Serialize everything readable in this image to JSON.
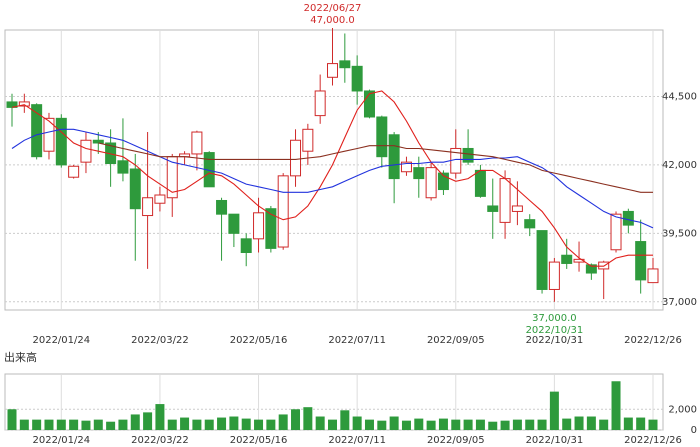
{
  "chart_data": [
    {
      "type": "candlestick",
      "categories": [
        null,
        null,
        null,
        null,
        "2022/01/24",
        null,
        null,
        null,
        null,
        null,
        null,
        null,
        "2022/03/22",
        null,
        null,
        null,
        null,
        null,
        null,
        null,
        "2022/05/16",
        null,
        null,
        null,
        null,
        null,
        null,
        null,
        "2022/07/11",
        null,
        null,
        null,
        null,
        null,
        null,
        null,
        "2022/09/05",
        null,
        null,
        null,
        null,
        null,
        null,
        null,
        "2022/10/31",
        null,
        null,
        null,
        null,
        null,
        null,
        null,
        "2022/12/26"
      ],
      "open": [
        44300,
        44150,
        44200,
        42500,
        43700,
        41550,
        42100,
        42900,
        42800,
        42150,
        41850,
        40150,
        40600,
        40800,
        42300,
        42400,
        42450,
        40700,
        40200,
        39300,
        39300,
        40400,
        39000,
        41600,
        42500,
        43800,
        45200,
        45800,
        45600,
        44700,
        43750,
        43100,
        41750,
        41900,
        40800,
        41700,
        41700,
        42600,
        41800,
        40500,
        39900,
        40300,
        40000,
        39600,
        37450,
        38700,
        38450,
        38350,
        38200,
        38900,
        40300,
        39200,
        37700
      ],
      "high": [
        44600,
        44600,
        44250,
        43900,
        43850,
        42000,
        43200,
        43200,
        43300,
        43700,
        42400,
        43200,
        41200,
        42400,
        42500,
        43250,
        42500,
        40800,
        40200,
        39500,
        40800,
        40500,
        41700,
        43300,
        43500,
        45300,
        47000,
        46800,
        46000,
        44750,
        43800,
        43200,
        42300,
        42300,
        42100,
        41800,
        43300,
        43300,
        42000,
        41500,
        41800,
        41400,
        40200,
        39600,
        38600,
        39300,
        39200,
        38400,
        38500,
        40300,
        40400,
        40000,
        38600
      ],
      "low": [
        43400,
        43900,
        42200,
        42200,
        41900,
        41500,
        41700,
        42400,
        41200,
        41400,
        38500,
        38200,
        40300,
        40100,
        42000,
        41800,
        41200,
        38500,
        39000,
        38300,
        38800,
        38800,
        38900,
        41200,
        42000,
        43500,
        44900,
        45000,
        44200,
        43700,
        41900,
        40600,
        41600,
        40800,
        40700,
        40900,
        41500,
        42000,
        40800,
        39300,
        39300,
        39800,
        39400,
        37300,
        37000,
        38200,
        38100,
        37800,
        37100,
        38800,
        39500,
        37300,
        37700
      ],
      "close": [
        44100,
        44300,
        42300,
        43700,
        42000,
        41950,
        42900,
        42800,
        42050,
        41700,
        40400,
        40800,
        40900,
        42300,
        42400,
        43200,
        41200,
        40200,
        39500,
        38800,
        40250,
        38950,
        41600,
        42900,
        43300,
        44700,
        45700,
        45550,
        44700,
        43750,
        42300,
        41500,
        42100,
        41500,
        41900,
        41100,
        42600,
        42100,
        40850,
        40300,
        41500,
        40500,
        39700,
        37450,
        38450,
        38400,
        38550,
        38050,
        38450,
        40200,
        39800,
        37800,
        38200
      ],
      "up_color": "#d02a2a",
      "down_color": "#2e9a3c",
      "moving_averages": [
        {
          "color": "#e0201c",
          "values": [
            44100,
            44200,
            43900,
            43600,
            43200,
            42800,
            42600,
            42500,
            42400,
            42300,
            42000,
            41600,
            41300,
            41000,
            41100,
            41400,
            41700,
            41600,
            41300,
            40900,
            40500,
            40200,
            40000,
            40100,
            40500,
            41200,
            42000,
            43000,
            44000,
            44600,
            44700,
            44300,
            43600,
            42800,
            42100,
            41600,
            41400,
            41500,
            41800,
            41800,
            41500,
            41100,
            40700,
            40300,
            39700,
            39000,
            38600,
            38300,
            38300,
            38600,
            38700,
            38700,
            38700
          ]
        },
        {
          "color": "#2233dd",
          "values": [
            42600,
            42900,
            43100,
            43200,
            43300,
            43300,
            43200,
            43100,
            43000,
            42900,
            42700,
            42500,
            42300,
            42100,
            42000,
            41900,
            41800,
            41700,
            41500,
            41300,
            41200,
            41100,
            41000,
            41000,
            41000,
            41100,
            41200,
            41400,
            41600,
            41800,
            41950,
            42000,
            42050,
            42050,
            42100,
            42100,
            42200,
            42200,
            42200,
            42250,
            42250,
            42300,
            42100,
            41900,
            41600,
            41200,
            40900,
            40600,
            40300,
            40100,
            40000,
            39900,
            39700
          ]
        },
        {
          "color": "#8b3020",
          "values": [
            null,
            null,
            null,
            null,
            null,
            null,
            null,
            42800,
            42700,
            42600,
            42500,
            42400,
            42300,
            42300,
            42300,
            42250,
            42200,
            42200,
            42200,
            42200,
            42200,
            42200,
            42200,
            42200,
            42250,
            42300,
            42400,
            42500,
            42600,
            42700,
            42700,
            42700,
            42600,
            42600,
            42550,
            42500,
            42450,
            42400,
            42350,
            42300,
            42200,
            42100,
            42000,
            41800,
            41700,
            41600,
            41500,
            41400,
            41300,
            41200,
            41100,
            41000,
            41000
          ]
        }
      ],
      "ylim": [
        36700,
        47000
      ],
      "yticks": [
        {
          "value": 37000,
          "label": "37,000"
        },
        {
          "value": 39500,
          "label": "39,500"
        },
        {
          "value": 42000,
          "label": "42,000"
        },
        {
          "value": 44500,
          "label": "44,500"
        }
      ],
      "grid": true,
      "annotations": [
        {
          "date": "2022/06/27",
          "value": 47000,
          "label": "47,000.0",
          "color": "#d02a2a",
          "position": "above"
        },
        {
          "date": "2022/10/31",
          "value": 37000,
          "label": "37,000.0",
          "color": "#2e9a3c",
          "position": "below"
        }
      ]
    },
    {
      "type": "bar",
      "title": "出来高",
      "values": [
        2000,
        1000,
        1000,
        1000,
        1000,
        1000,
        900,
        1000,
        800,
        1000,
        1500,
        1700,
        2500,
        1000,
        1200,
        1000,
        1000,
        1200,
        1300,
        1100,
        1000,
        1000,
        1500,
        2000,
        2200,
        1300,
        1000,
        1900,
        1300,
        1000,
        900,
        1300,
        900,
        1100,
        900,
        1100,
        1000,
        1000,
        1000,
        800,
        900,
        1000,
        1000,
        1000,
        3700,
        1100,
        1300,
        1300,
        1000,
        4700,
        1200,
        1200,
        1000
      ],
      "color": "#2e9a3c",
      "ylim": [
        0,
        5400
      ],
      "yticks": [
        0,
        {
          "value": 2000,
          "label": "2,000"
        }
      ],
      "grid": true
    }
  ]
}
